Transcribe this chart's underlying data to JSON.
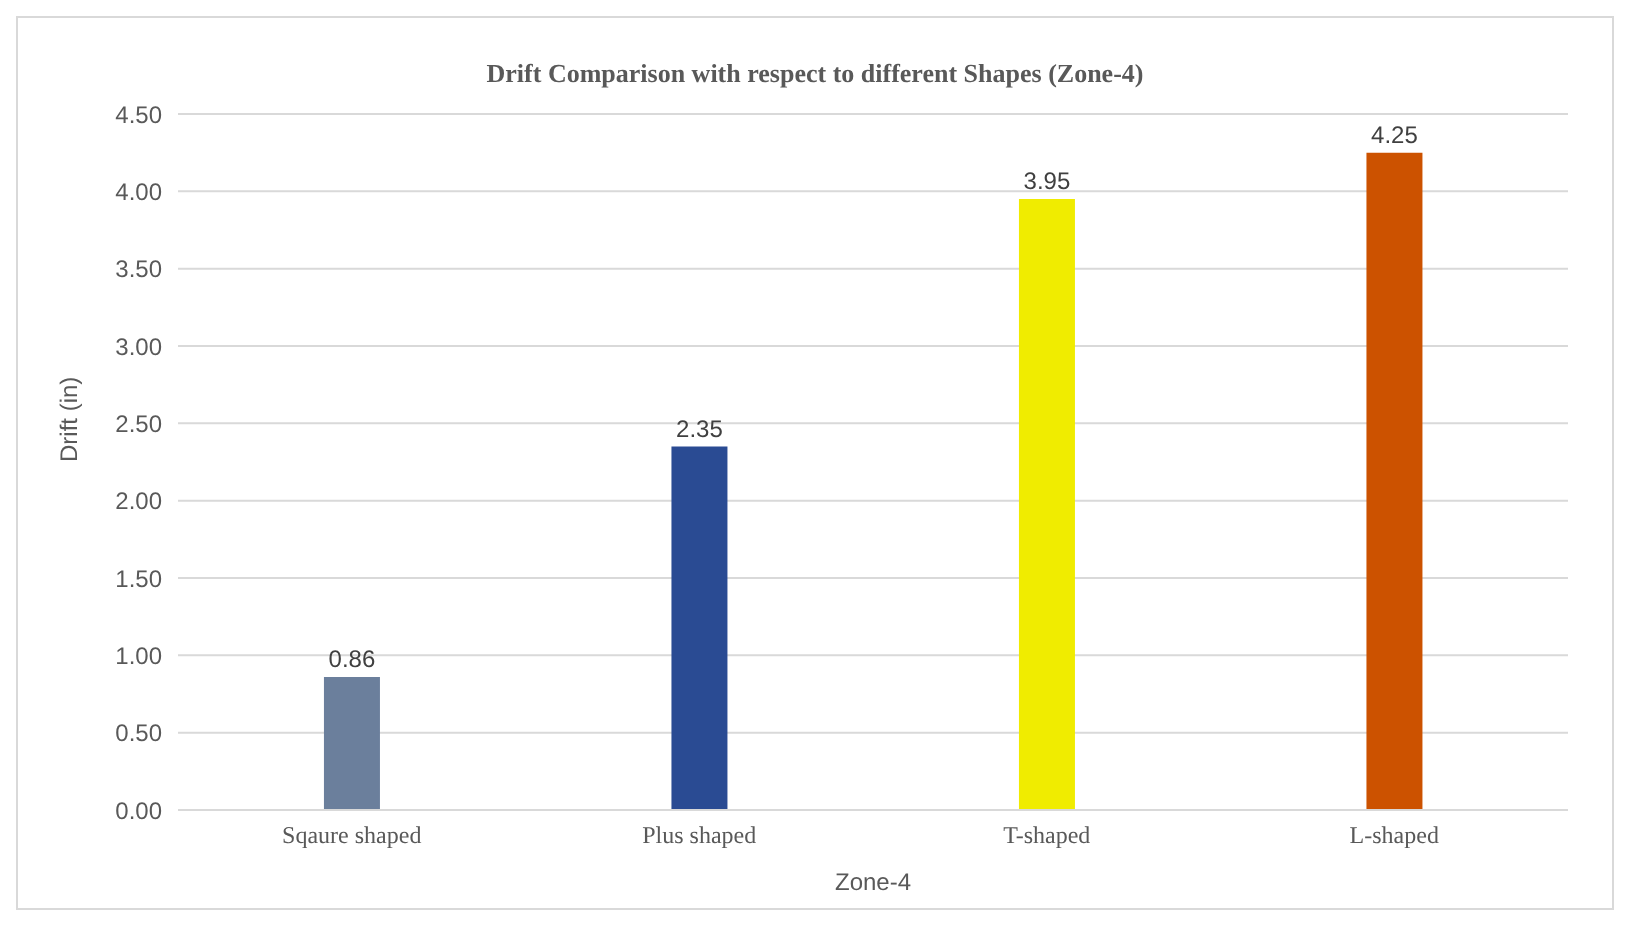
{
  "chart_data": {
    "type": "bar",
    "title": "Drift Comparison with respect to different Shapes (Zone-4)",
    "xlabel": "Zone-4",
    "ylabel": "Drift (in)",
    "categories": [
      "Sqaure shaped",
      "Plus shaped",
      "T-shaped",
      "L-shaped"
    ],
    "values": [
      0.86,
      2.35,
      3.95,
      4.25
    ],
    "colors": [
      "#6b7f9c",
      "#2a4b93",
      "#f0ec00",
      "#cc5200"
    ],
    "ylim": [
      0,
      4.5
    ],
    "yticks": [
      {
        "value": 0,
        "label": "0.00"
      },
      {
        "value": 0.5,
        "label": "0.50"
      },
      {
        "value": 1,
        "label": "1.00"
      },
      {
        "value": 1.5,
        "label": "1.50"
      },
      {
        "value": 2,
        "label": "2.00"
      },
      {
        "value": 2.5,
        "label": "2.50"
      },
      {
        "value": 3,
        "label": "3.00"
      },
      {
        "value": 3.5,
        "label": "3.50"
      },
      {
        "value": 4,
        "label": "4.00"
      },
      {
        "value": 4.5,
        "label": "4.50"
      }
    ],
    "grid": "y",
    "data_labels": true
  }
}
